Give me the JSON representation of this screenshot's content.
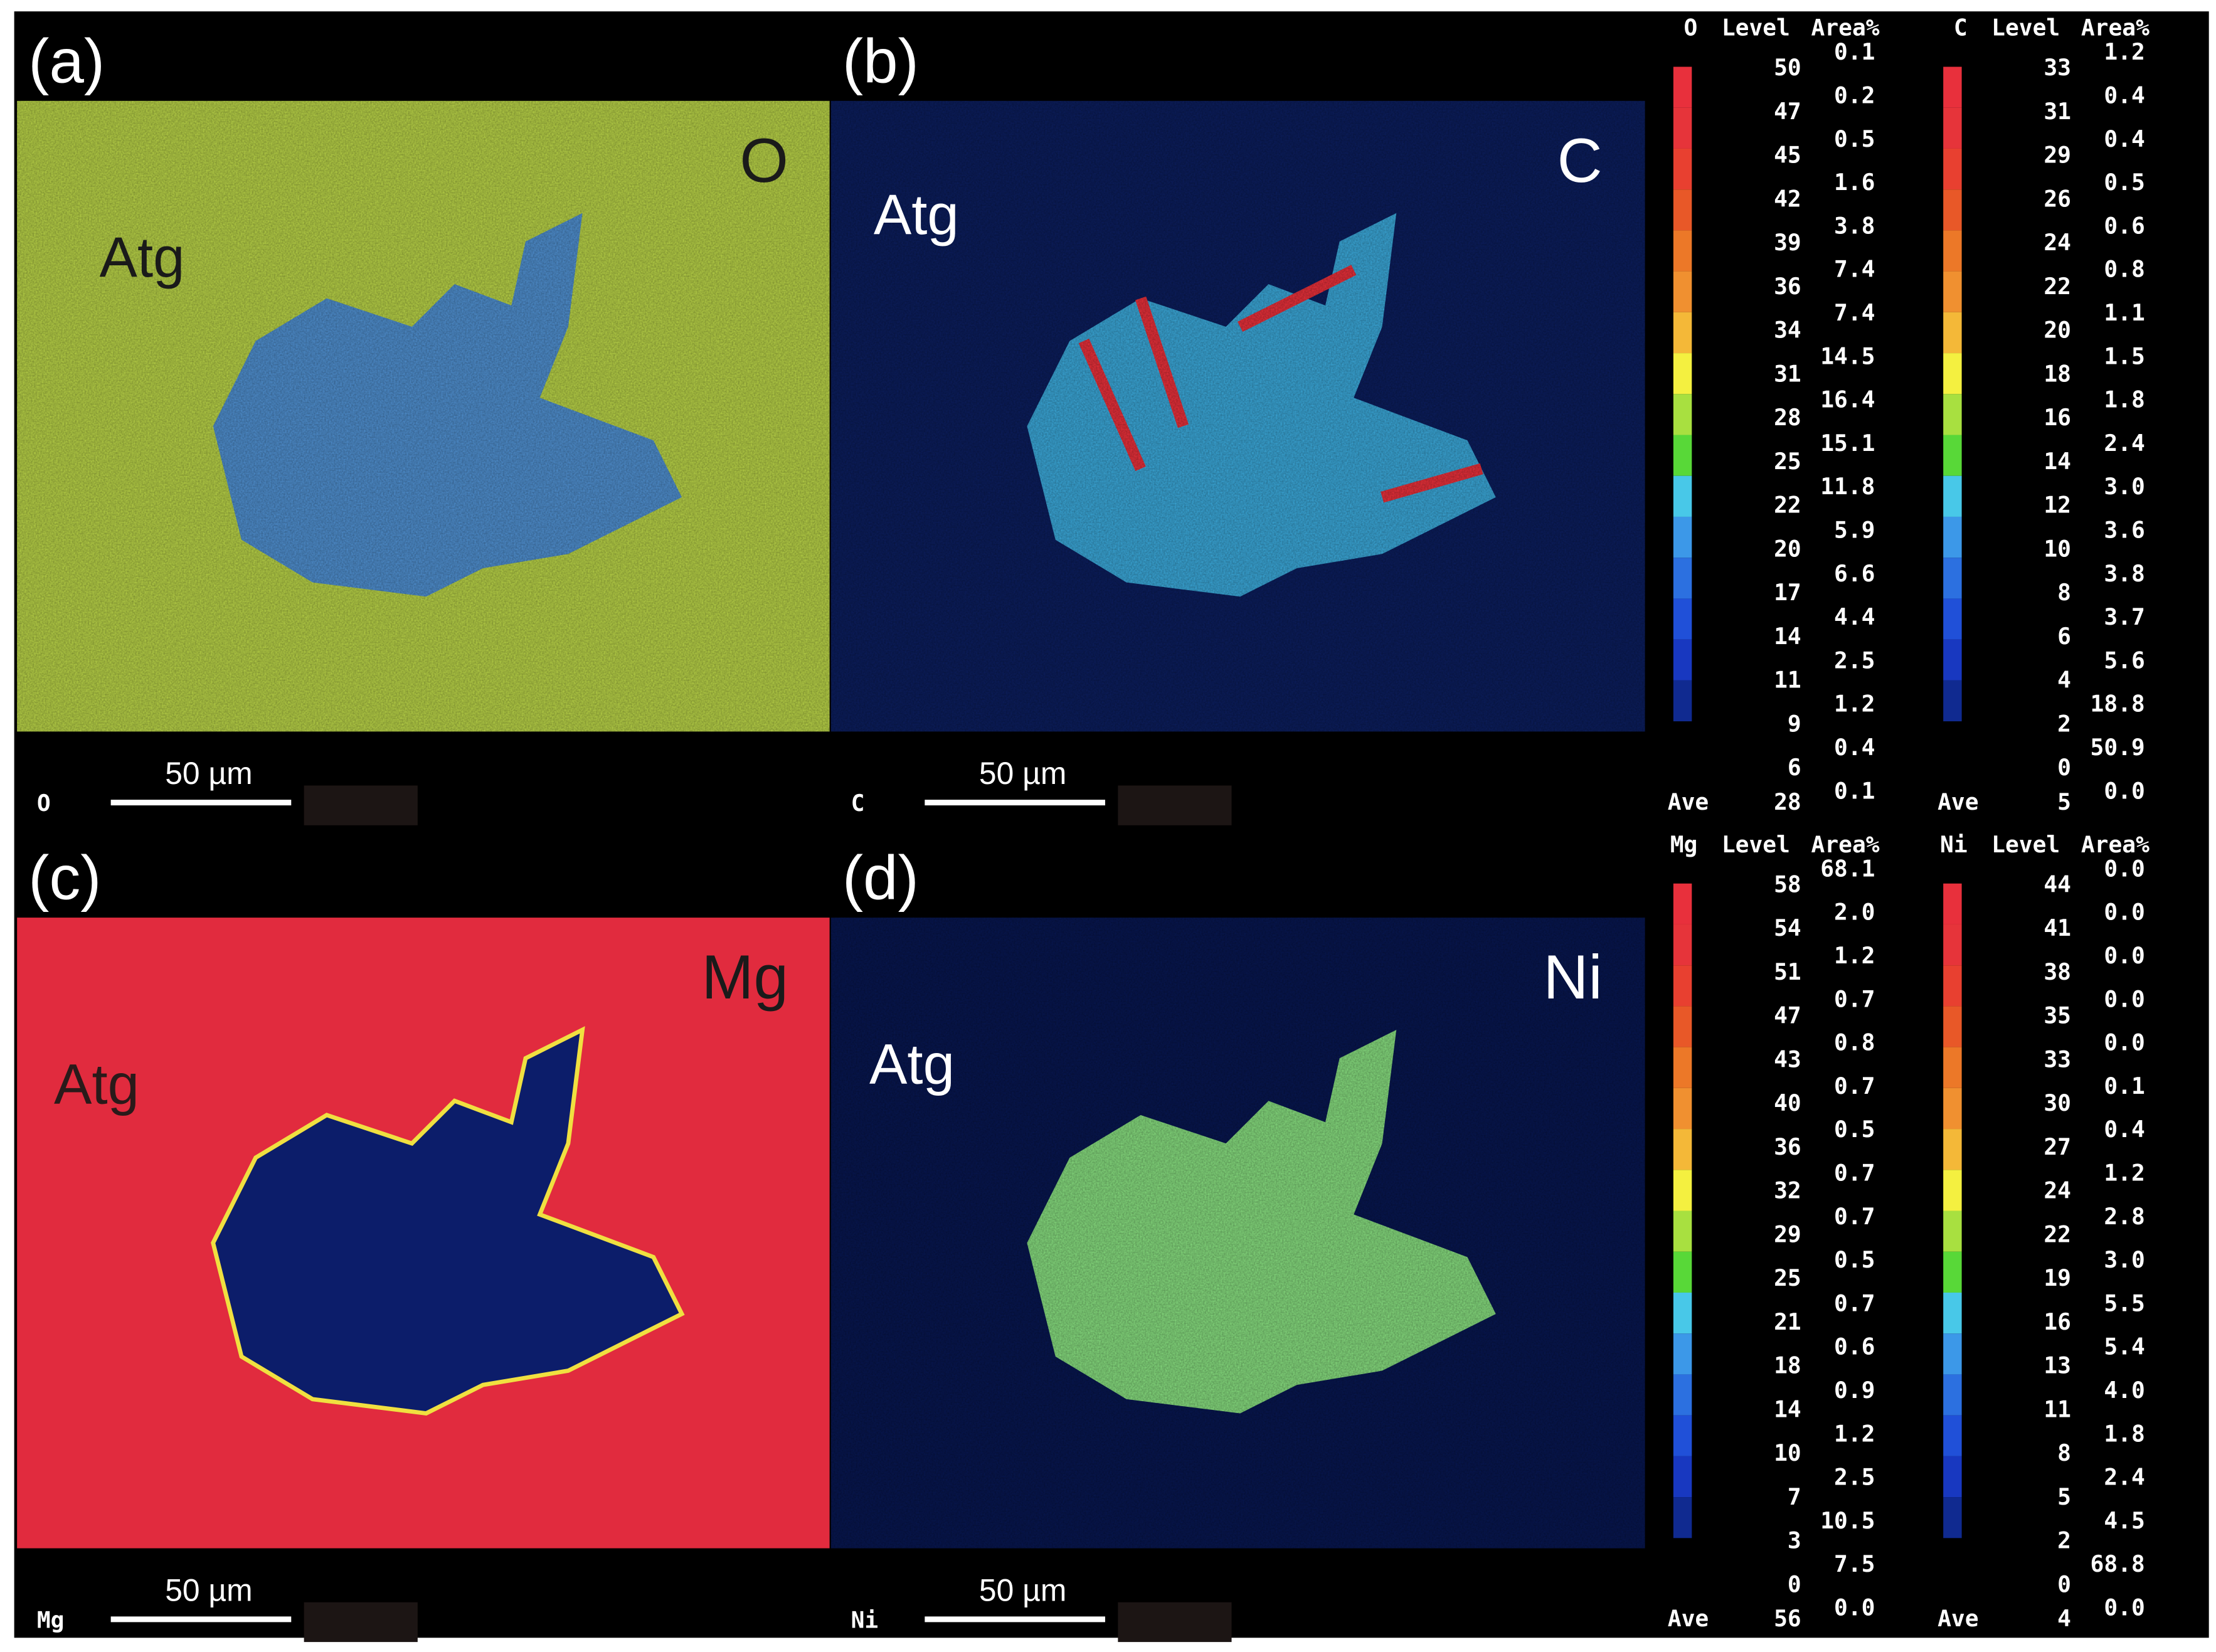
{
  "panels": [
    {
      "label": "(a)",
      "element": "O",
      "phase": "Atg",
      "scale": "50 µm",
      "corner": "O"
    },
    {
      "label": "(b)",
      "element": "C",
      "phase": "Atg",
      "scale": "50 µm",
      "corner": "C"
    },
    {
      "label": "(c)",
      "element": "Mg",
      "phase": "Atg",
      "scale": "50 µm",
      "corner": "Mg"
    },
    {
      "label": "(d)",
      "element": "Ni",
      "phase": "Atg",
      "scale": "50 µm",
      "corner": "Ni"
    }
  ],
  "legends": [
    {
      "element": "O",
      "level": "Level",
      "area": "Area%",
      "levels": [
        "50",
        "47",
        "45",
        "42",
        "39",
        "36",
        "34",
        "31",
        "28",
        "25",
        "22",
        "20",
        "17",
        "14",
        "11",
        "9",
        "6"
      ],
      "areas": [
        "0.1",
        "0.2",
        "0.5",
        "1.6",
        "3.8",
        "7.4",
        "7.4",
        "14.5",
        "16.4",
        "15.1",
        "11.8",
        "5.9",
        "6.6",
        "4.4",
        "2.5",
        "1.2",
        "0.4",
        "0.1"
      ],
      "ave": "Ave",
      "ave_value": "28"
    },
    {
      "element": "C",
      "level": "Level",
      "area": "Area%",
      "levels": [
        "33",
        "31",
        "29",
        "26",
        "24",
        "22",
        "20",
        "18",
        "16",
        "14",
        "12",
        "10",
        "8",
        "6",
        "4",
        "2",
        "0"
      ],
      "areas": [
        "1.2",
        "0.4",
        "0.4",
        "0.5",
        "0.6",
        "0.8",
        "1.1",
        "1.5",
        "1.8",
        "2.4",
        "3.0",
        "3.6",
        "3.8",
        "3.7",
        "5.6",
        "18.8",
        "50.9",
        "0.0"
      ],
      "ave": "Ave",
      "ave_value": "5"
    },
    {
      "element": "Mg",
      "level": "Level",
      "area": "Area%",
      "levels": [
        "58",
        "54",
        "51",
        "47",
        "43",
        "40",
        "36",
        "32",
        "29",
        "25",
        "21",
        "18",
        "14",
        "10",
        "7",
        "3",
        "0"
      ],
      "areas": [
        "68.1",
        "2.0",
        "1.2",
        "0.7",
        "0.8",
        "0.7",
        "0.5",
        "0.7",
        "0.7",
        "0.5",
        "0.7",
        "0.6",
        "0.9",
        "1.2",
        "2.5",
        "10.5",
        "7.5",
        "0.0"
      ],
      "ave": "Ave",
      "ave_value": "56"
    },
    {
      "element": "Ni",
      "level": "Level",
      "area": "Area%",
      "levels": [
        "44",
        "41",
        "38",
        "35",
        "33",
        "30",
        "27",
        "24",
        "22",
        "19",
        "16",
        "13",
        "11",
        "8",
        "5",
        "2",
        "0"
      ],
      "areas": [
        "0.0",
        "0.0",
        "0.0",
        "0.0",
        "0.0",
        "0.1",
        "0.4",
        "1.2",
        "2.8",
        "3.0",
        "5.5",
        "5.4",
        "4.0",
        "1.8",
        "2.4",
        "4.5",
        "68.8",
        "0.0"
      ],
      "ave": "Ave",
      "ave_value": "4"
    }
  ]
}
